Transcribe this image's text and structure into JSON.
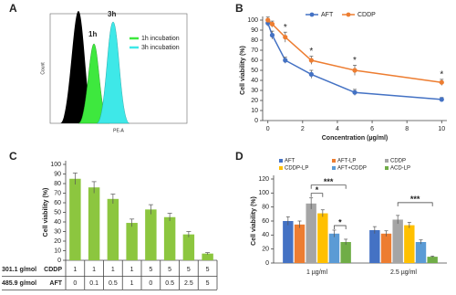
{
  "chart_data": [
    {
      "type": "density",
      "label": "A",
      "x_label": "PE-A",
      "y_label": "Count",
      "peak_labels": [
        "1h",
        "3h"
      ],
      "series": [
        {
          "name": "1h incubation",
          "color": "#3ee83e"
        },
        {
          "name": "3h incubation",
          "color": "#3ee8e8"
        }
      ]
    },
    {
      "type": "line",
      "label": "B",
      "x_label": "Concentration (µg/ml)",
      "y_label": "Cell viability (%)",
      "x": [
        0,
        0.25,
        1,
        2.5,
        5,
        10
      ],
      "series": [
        {
          "name": "AFT",
          "color": "#4472c4",
          "values": [
            97,
            85,
            60,
            46,
            28,
            21
          ],
          "errors": [
            3,
            4,
            3,
            4,
            3,
            2
          ]
        },
        {
          "name": "CDDP",
          "color": "#ed7d31",
          "values": [
            100,
            96,
            83,
            60,
            50,
            38
          ],
          "errors": [
            3,
            3,
            5,
            4,
            5,
            3
          ]
        }
      ],
      "xlim": [
        -0.3,
        10.3
      ],
      "xticks": [
        0,
        2,
        4,
        6,
        8,
        10
      ],
      "ylim": [
        0,
        100
      ],
      "yticks": [
        0,
        10,
        20,
        30,
        40,
        50,
        60,
        70,
        80,
        90,
        100
      ],
      "annotations": [
        {
          "x": 1,
          "label": "*"
        },
        {
          "x": 2.5,
          "label": "*"
        },
        {
          "x": 5,
          "label": "*"
        },
        {
          "x": 10,
          "label": "*"
        }
      ]
    },
    {
      "type": "bar",
      "label": "C",
      "y_label": "Cell viability (%)",
      "color": "#8cc63f",
      "values": [
        85,
        76,
        64,
        39,
        53,
        45,
        27,
        7
      ],
      "errors": [
        6,
        6,
        5,
        4,
        5,
        4,
        3,
        1
      ],
      "ylim": [
        0,
        100
      ],
      "yticks": [
        0,
        10,
        20,
        30,
        40,
        50,
        60,
        70,
        80,
        90,
        100
      ],
      "table": [
        {
          "label": "301.1 g/mol",
          "name": "CDDP",
          "cells": [
            1,
            1,
            1,
            1,
            5,
            5,
            5,
            5
          ]
        },
        {
          "label": "485.9 g/mol",
          "name": "AFT",
          "cells": [
            0,
            0.1,
            0.5,
            1,
            0,
            0.5,
            2.5,
            5
          ]
        }
      ]
    },
    {
      "type": "grouped-bar",
      "label": "D",
      "y_label": "Cell viability (%)",
      "categories": [
        "1 µg/ml",
        "2.5 µg/ml"
      ],
      "series": [
        {
          "name": "AFT",
          "color": "#4472c4",
          "values": [
            60,
            47
          ],
          "errors": [
            6,
            5
          ]
        },
        {
          "name": "AFT-LP",
          "color": "#ed7d31",
          "values": [
            55,
            42
          ],
          "errors": [
            5,
            4
          ]
        },
        {
          "name": "CDDP",
          "color": "#a5a5a5",
          "values": [
            85,
            62
          ],
          "errors": [
            8,
            6
          ]
        },
        {
          "name": "CDDP-LP",
          "color": "#ffc000",
          "values": [
            71,
            54
          ],
          "errors": [
            5,
            4
          ]
        },
        {
          "name": "AFT+CDDP",
          "color": "#5b9bd5",
          "values": [
            42,
            30
          ],
          "errors": [
            5,
            3
          ]
        },
        {
          "name": "ACD-LP",
          "color": "#70ad47",
          "values": [
            30,
            9
          ],
          "errors": [
            4,
            1
          ]
        }
      ],
      "ylim": [
        0,
        120
      ],
      "yticks": [
        0,
        20,
        40,
        60,
        80,
        100,
        120
      ],
      "annotations": [
        {
          "label": "*",
          "group": 0,
          "from": 2,
          "to": 3
        },
        {
          "label": "***",
          "group": 0,
          "from": 2,
          "to": 5
        },
        {
          "label": "*",
          "group": 0,
          "from": 4,
          "to": 5
        },
        {
          "label": "***",
          "group": 1,
          "from": 2,
          "to": 5
        }
      ]
    }
  ]
}
